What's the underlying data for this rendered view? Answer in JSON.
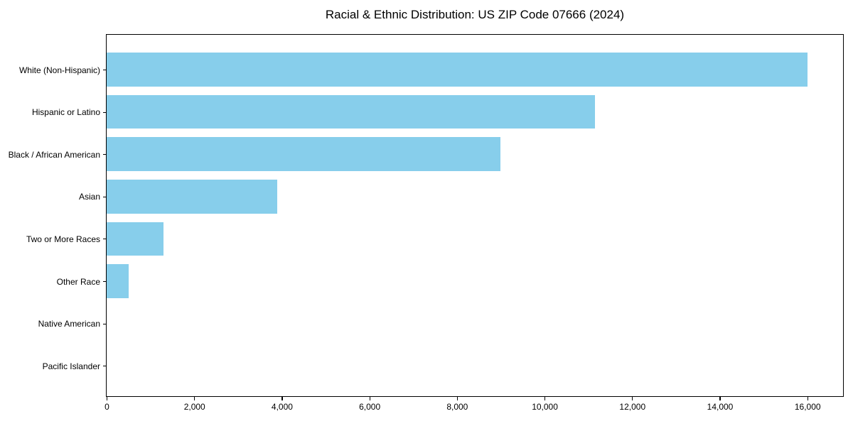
{
  "chart_data": {
    "type": "bar",
    "orientation": "horizontal",
    "title": "Racial & Ethnic Distribution: US ZIP Code 07666 (2024)",
    "categories": [
      "White (Non-Hispanic)",
      "Hispanic or Latino",
      "Black / African American",
      "Asian",
      "Two or More Races",
      "Other Race",
      "Native American",
      "Pacific Islander"
    ],
    "values": [
      16000,
      11150,
      9000,
      3900,
      1300,
      500,
      0,
      0
    ],
    "xlabel": "",
    "ylabel": "",
    "xlim": [
      0,
      16800
    ],
    "xticks": [
      0,
      2000,
      4000,
      6000,
      8000,
      10000,
      12000,
      14000,
      16000
    ],
    "xtick_labels": [
      "0",
      "2,000",
      "4,000",
      "6,000",
      "8,000",
      "10,000",
      "12,000",
      "14,000",
      "16,000"
    ],
    "bar_color": "#87ceeb",
    "axes_color": "#000000",
    "background_color": "#ffffff",
    "grid": false,
    "legend": null
  }
}
